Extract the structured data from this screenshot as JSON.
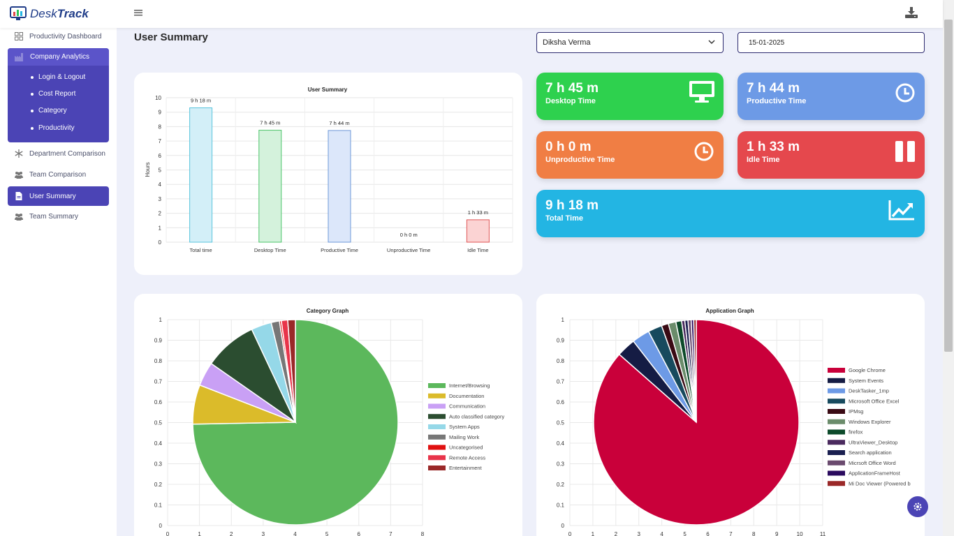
{
  "app": {
    "logo_part1": "Desk",
    "logo_part2": "Track"
  },
  "sidebar": {
    "items": [
      {
        "label": "Productivity Dashboard",
        "icon": "grid-icon"
      },
      {
        "label": "Company Analytics",
        "icon": "factory-icon"
      },
      {
        "label": "Department Comparison",
        "icon": "snowflake-icon"
      },
      {
        "label": "Team Comparison",
        "icon": "users-icon"
      },
      {
        "label": "User Summary",
        "icon": "document-icon"
      },
      {
        "label": "Team Summary",
        "icon": "users-icon"
      }
    ],
    "subitems": [
      "Login & Logout",
      "Cost Report",
      "Category",
      "Productivity"
    ]
  },
  "page": {
    "title": "User Summary"
  },
  "filters": {
    "user": "Diksha Verma",
    "date": "15-01-2025"
  },
  "stats": [
    {
      "value": "7 h 45 m",
      "label": "Desktop Time",
      "color": "#2ed14e",
      "icon": "monitor-icon"
    },
    {
      "value": "7 h 44 m",
      "label": "Productive Time",
      "color": "#6d9ae6",
      "icon": "clock-icon"
    },
    {
      "value": "0 h 0 m",
      "label": "Unproductive Time",
      "color": "#f07e44",
      "icon": "clock-icon"
    },
    {
      "value": "1 h 33 m",
      "label": "Idle Time",
      "color": "#e5484d",
      "icon": "pause-icon"
    },
    {
      "value": "9 h 18 m",
      "label": "Total Time",
      "color": "#23b5e3",
      "icon": "chart-line-icon"
    }
  ],
  "chart_data": [
    {
      "type": "bar",
      "title": "User Summary",
      "ylabel": "Hours",
      "xlabel": "",
      "ylim": [
        0,
        10
      ],
      "yticks": [
        "0",
        "1",
        "2",
        "3",
        "4",
        "5",
        "6",
        "7",
        "8",
        "9",
        "10"
      ],
      "categories": [
        "Total time",
        "Desktop Time",
        "Productive Time",
        "Unproductive Time",
        "Idle Time"
      ],
      "values": [
        9.3,
        7.75,
        7.73,
        0,
        1.55
      ],
      "data_labels": [
        "9 h 18 m",
        "7 h 45 m",
        "7 h 44 m",
        "0 h 0 m",
        "1 h 33 m"
      ],
      "colors": [
        {
          "fill": "#d3eff8",
          "stroke": "#58c4dc"
        },
        {
          "fill": "#d4f2dc",
          "stroke": "#4cc46a"
        },
        {
          "fill": "#dce7fa",
          "stroke": "#6e98d8"
        },
        {
          "fill": "#fde8d8",
          "stroke": "#f08a4b"
        },
        {
          "fill": "#fbd3d3",
          "stroke": "#e05656"
        }
      ],
      "grid": true
    },
    {
      "type": "pie",
      "title": "Category Graph",
      "xticks": [
        "0",
        "1",
        "2",
        "3",
        "4",
        "5",
        "6",
        "7",
        "8"
      ],
      "yticks": [
        "0",
        "0.1",
        "0.2",
        "0.3",
        "0.4",
        "0.5",
        "0.6",
        "0.7",
        "0.8",
        "0.9",
        "1"
      ],
      "legend_position": "right",
      "slices": [
        {
          "label": "Internet/Browsing",
          "value": 74.7,
          "color": "#5cb85c"
        },
        {
          "label": "Documentation",
          "value": 6.2,
          "color": "#dbbb2a"
        },
        {
          "label": "Communication",
          "value": 3.8,
          "color": "#c9a0f5"
        },
        {
          "label": "Auto classified category",
          "value": 8.3,
          "color": "#2b4d30"
        },
        {
          "label": "System Apps",
          "value": 3.2,
          "color": "#95d8e8"
        },
        {
          "label": "Mailing Work",
          "value": 1.3,
          "color": "#777777"
        },
        {
          "label": "Uncategorised",
          "value": 0.3,
          "color": "#e01010"
        },
        {
          "label": "Remote Access",
          "value": 1.0,
          "color": "#e8344a"
        },
        {
          "label": "Entertainment",
          "value": 1.2,
          "color": "#9a2828"
        }
      ]
    },
    {
      "type": "pie",
      "title": "Application Graph",
      "xticks": [
        "0",
        "1",
        "2",
        "3",
        "4",
        "5",
        "6",
        "7",
        "8",
        "9",
        "10",
        "11"
      ],
      "yticks": [
        "0",
        "0.1",
        "0.2",
        "0.3",
        "0.4",
        "0.5",
        "0.6",
        "0.7",
        "0.8",
        "0.9",
        "1"
      ],
      "legend_position": "right",
      "slices": [
        {
          "label": "Google Chrome",
          "value": 86.5,
          "color": "#c9003a"
        },
        {
          "label": "System Events",
          "value": 3.0,
          "color": "#151c44"
        },
        {
          "label": "DeskTasker_1mp",
          "value": 2.8,
          "color": "#6d9ae6"
        },
        {
          "label": "Microsoft Office Excel",
          "value": 2.2,
          "color": "#174a5e"
        },
        {
          "label": "IPMsg",
          "value": 1.1,
          "color": "#3a0a14"
        },
        {
          "label": "Windows Explorer",
          "value": 1.2,
          "color": "#6b8c6b"
        },
        {
          "label": "firefox",
          "value": 0.9,
          "color": "#0c4a2a"
        },
        {
          "label": "UltraViewer_Desktop",
          "value": 0.5,
          "color": "#4a2a5e"
        },
        {
          "label": "Search application",
          "value": 0.5,
          "color": "#1a1f50"
        },
        {
          "label": "Micrsoft Office Word",
          "value": 0.5,
          "color": "#6a4a6e"
        },
        {
          "label": "ApplicationFrameHost",
          "value": 0.4,
          "color": "#2a0a5e"
        },
        {
          "label": "Mi Doc Viewer (Powered b",
          "value": 0.4,
          "color": "#9a2828"
        }
      ]
    }
  ]
}
